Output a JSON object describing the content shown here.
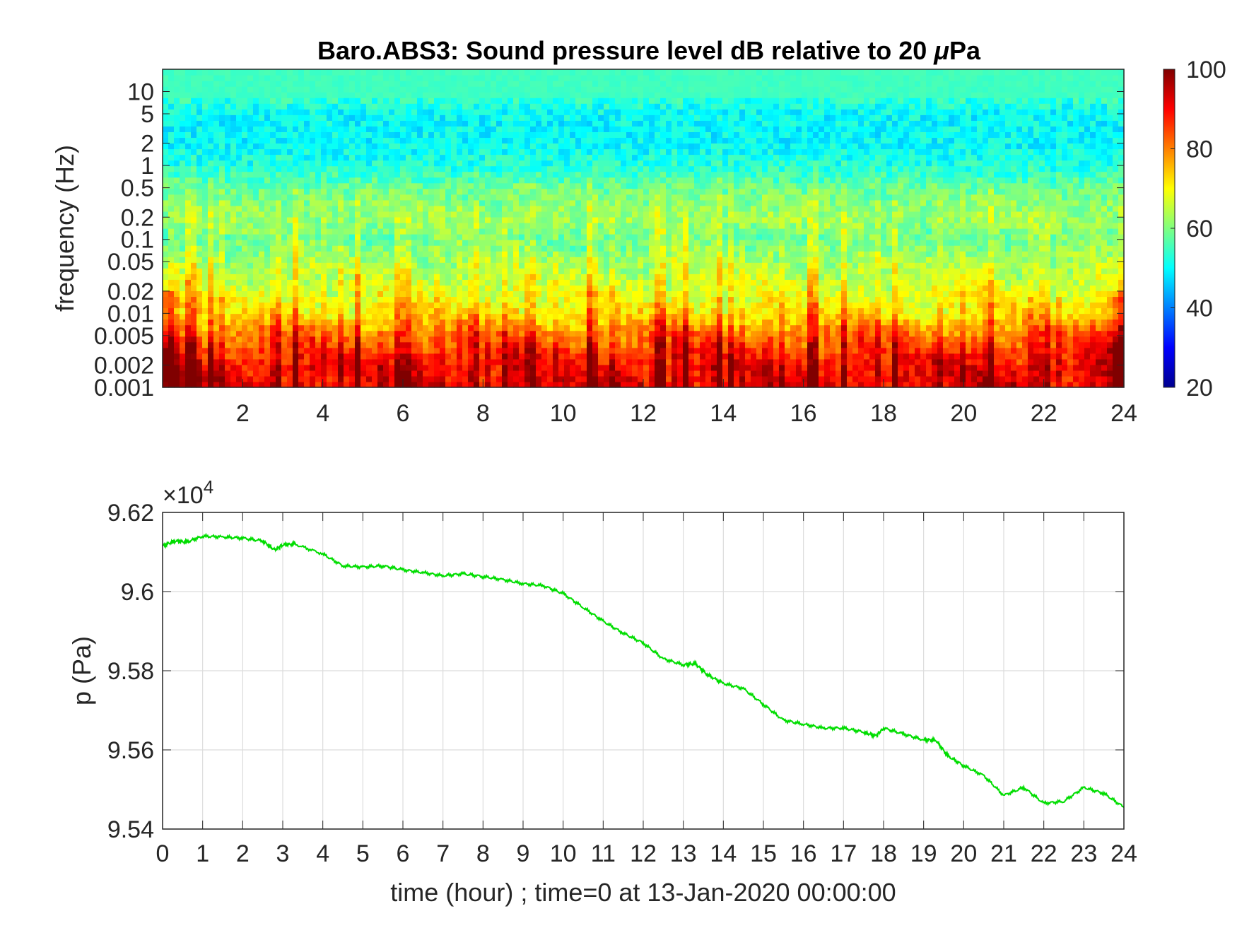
{
  "chart_data": [
    {
      "type": "heatmap",
      "title_main": "Baro.ABS3: Sound pressure level dB relative to 20 ",
      "title_mu": "μ",
      "title_tail": "Pa",
      "ylabel": "frequency (Hz)",
      "xlabel": "",
      "x_range": [
        0,
        24
      ],
      "x_ticks": [
        2,
        4,
        6,
        8,
        10,
        12,
        14,
        16,
        18,
        20,
        22,
        24
      ],
      "y_scale": "log",
      "y_range": [
        0.001,
        20
      ],
      "y_ticks": [
        {
          "value": 0.001,
          "label": "0.001"
        },
        {
          "value": 0.002,
          "label": "0.002"
        },
        {
          "value": 0.005,
          "label": "0.005"
        },
        {
          "value": 0.01,
          "label": "0.01"
        },
        {
          "value": 0.02,
          "label": "0.02"
        },
        {
          "value": 0.05,
          "label": "0.05"
        },
        {
          "value": 0.1,
          "label": "0.1"
        },
        {
          "value": 0.2,
          "label": "0.2"
        },
        {
          "value": 0.5,
          "label": "0.5"
        },
        {
          "value": 1,
          "label": "1"
        },
        {
          "value": 2,
          "label": "2"
        },
        {
          "value": 5,
          "label": "5"
        },
        {
          "value": 10,
          "label": "10"
        }
      ],
      "colormap": "jet",
      "colorbar": {
        "range": [
          20,
          100
        ],
        "ticks": [
          {
            "value": 20,
            "label": "20"
          },
          {
            "value": 40,
            "label": "40"
          },
          {
            "value": 60,
            "label": "60"
          },
          {
            "value": 80,
            "label": "80"
          },
          {
            "value": 100,
            "label": "100"
          }
        ]
      },
      "level_profile_db": [
        {
          "f": 0.001,
          "db": 90
        },
        {
          "f": 0.002,
          "db": 88
        },
        {
          "f": 0.005,
          "db": 80
        },
        {
          "f": 0.01,
          "db": 70
        },
        {
          "f": 0.02,
          "db": 66
        },
        {
          "f": 0.05,
          "db": 62
        },
        {
          "f": 0.1,
          "db": 58
        },
        {
          "f": 0.2,
          "db": 62
        },
        {
          "f": 0.5,
          "db": 58
        },
        {
          "f": 1,
          "db": 52
        },
        {
          "f": 2,
          "db": 50
        },
        {
          "f": 5,
          "db": 50
        },
        {
          "f": 10,
          "db": 55
        },
        {
          "f": 20,
          "db": 55
        }
      ]
    },
    {
      "type": "line",
      "xlabel": "time (hour) ; time=0 at 13-Jan-2020 00:00:00",
      "ylabel": "p (Pa)",
      "y_exponent_prefix": "×10",
      "y_exponent": "4",
      "x_range": [
        0,
        24
      ],
      "y_range": [
        9.54,
        9.62
      ],
      "grid": true,
      "x_ticks": [
        0,
        1,
        2,
        3,
        4,
        5,
        6,
        7,
        8,
        9,
        10,
        11,
        12,
        13,
        14,
        15,
        16,
        17,
        18,
        19,
        20,
        21,
        22,
        23,
        24
      ],
      "y_ticks": [
        {
          "value": 9.54,
          "label": "9.54"
        },
        {
          "value": 9.56,
          "label": "9.56"
        },
        {
          "value": 9.58,
          "label": "9.58"
        },
        {
          "value": 9.6,
          "label": "9.6"
        },
        {
          "value": 9.62,
          "label": "9.62"
        }
      ],
      "line_color": "#00dd00",
      "series": [
        {
          "x": [
            0,
            0.3,
            0.6,
            1,
            1.5,
            2,
            2.5,
            2.8,
            3,
            3.3,
            4,
            4.5,
            5,
            5.5,
            6,
            6.5,
            7,
            7.5,
            8,
            8.5,
            9,
            9.5,
            10,
            10.5,
            11,
            11.5,
            12,
            12.5,
            13,
            13.3,
            13.6,
            14,
            14.5,
            15,
            15.5,
            16,
            16.5,
            17,
            17.5,
            17.8,
            18,
            18.5,
            19,
            19.3,
            19.6,
            20,
            20.5,
            21,
            21.5,
            22,
            22.5,
            23,
            23.5,
            24
          ],
          "y": [
            9.6115,
            9.6128,
            9.6125,
            9.614,
            9.6138,
            9.6135,
            9.6128,
            9.6105,
            9.6118,
            9.612,
            9.6095,
            9.6065,
            9.6062,
            9.6065,
            9.6055,
            9.6048,
            9.604,
            9.6045,
            9.6038,
            9.603,
            9.602,
            9.6015,
            9.5995,
            9.596,
            9.5925,
            9.5895,
            9.587,
            9.583,
            9.5815,
            9.5818,
            9.579,
            9.5768,
            9.5755,
            9.5715,
            9.5675,
            9.5665,
            9.5655,
            9.5655,
            9.5645,
            9.5635,
            9.5655,
            9.564,
            9.5625,
            9.5625,
            9.5585,
            9.556,
            9.5535,
            9.5485,
            9.5505,
            9.5465,
            9.547,
            9.5505,
            9.549,
            9.5455
          ]
        }
      ]
    }
  ]
}
